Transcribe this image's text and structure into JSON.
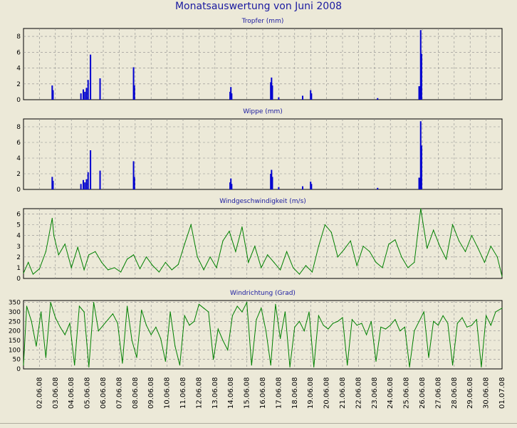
{
  "title": "Monatsauswertung von Juni 2008",
  "colors": {
    "rain": "#0000d0",
    "wind": "#008000",
    "plot_bg": "#ece9d8",
    "grid": "#8c8c8c",
    "panel_title": "#1a1aa0"
  },
  "chart_data": [
    {
      "type": "bar",
      "title": "Tropfer (mm)",
      "ylim": [
        0,
        9
      ],
      "yticks": [
        0,
        2,
        4,
        6,
        8
      ],
      "xlim": [
        "01.06.08",
        "01.07.08"
      ],
      "grid": true,
      "series": [
        {
          "values_x_day": [
            1.8,
            1.85,
            3.6,
            3.75,
            3.85,
            3.95,
            4.05,
            4.2,
            4.8,
            6.9,
            6.95,
            12.95,
            13.0,
            13.05,
            15.5,
            15.55,
            15.6,
            16.0,
            17.5,
            18.0,
            18.05,
            22.2,
            24.8,
            24.85,
            24.9,
            24.95
          ],
          "values": [
            1.8,
            1.2,
            0.8,
            1.3,
            1.0,
            1.5,
            2.5,
            5.7,
            2.7,
            4.1,
            1.8,
            1.0,
            1.6,
            0.8,
            2.2,
            2.8,
            1.8,
            0.3,
            0.5,
            1.2,
            0.8,
            0.2,
            1.7,
            1.7,
            8.8,
            5.8
          ]
        }
      ]
    },
    {
      "type": "bar",
      "title": "Wippe (mm)",
      "ylim": [
        0,
        9
      ],
      "yticks": [
        0,
        2,
        4,
        6,
        8
      ],
      "xlim": [
        "01.06.08",
        "01.07.08"
      ],
      "grid": true,
      "series": [
        {
          "values_x_day": [
            1.8,
            1.85,
            3.6,
            3.75,
            3.85,
            3.95,
            4.05,
            4.2,
            4.8,
            6.9,
            6.95,
            12.95,
            13.0,
            13.05,
            15.5,
            15.55,
            15.6,
            16.0,
            17.5,
            18.0,
            18.05,
            22.2,
            24.8,
            24.85,
            24.9,
            24.95
          ],
          "values": [
            1.6,
            1.1,
            0.7,
            1.2,
            0.9,
            1.3,
            2.2,
            5.0,
            2.4,
            3.6,
            1.6,
            0.9,
            1.4,
            0.7,
            2.0,
            2.5,
            1.6,
            0.3,
            0.4,
            1.0,
            0.7,
            0.2,
            1.5,
            1.5,
            8.7,
            5.6
          ]
        }
      ]
    },
    {
      "type": "line",
      "title": "Windgeschwindigkeit (m/s)",
      "ylim": [
        0,
        6.5
      ],
      "yticks": [
        0,
        1,
        2,
        3,
        4,
        5,
        6
      ],
      "xlim": [
        "01.06.08",
        "01.07.08"
      ],
      "grid": true,
      "series": [
        {
          "x_day": [
            0,
            0.3,
            0.6,
            1.0,
            1.4,
            1.8,
            1.9,
            2.2,
            2.6,
            3.0,
            3.4,
            3.8,
            4.1,
            4.5,
            4.9,
            5.3,
            5.7,
            6.1,
            6.5,
            6.9,
            7.3,
            7.7,
            8.1,
            8.5,
            8.9,
            9.3,
            9.7,
            10.1,
            10.5,
            10.9,
            11.3,
            11.7,
            12.1,
            12.5,
            12.9,
            13.3,
            13.7,
            14.1,
            14.5,
            14.9,
            15.3,
            15.7,
            16.1,
            16.5,
            16.9,
            17.3,
            17.7,
            18.1,
            18.5,
            18.9,
            19.3,
            19.7,
            20.1,
            20.5,
            20.9,
            21.3,
            21.7,
            22.1,
            22.5,
            22.9,
            23.3,
            23.7,
            24.1,
            24.5,
            24.9,
            25.3,
            25.7,
            26.1,
            26.5,
            26.9,
            27.3,
            27.7,
            28.1,
            28.5,
            28.9,
            29.3,
            29.7,
            30.0
          ],
          "values": [
            0.5,
            1.5,
            0.4,
            0.9,
            2.5,
            5.6,
            4.0,
            2.2,
            3.2,
            1.0,
            2.9,
            0.8,
            2.2,
            2.5,
            1.5,
            0.8,
            1.0,
            0.6,
            1.8,
            2.2,
            0.9,
            2.0,
            1.2,
            0.6,
            1.5,
            0.8,
            1.3,
            3.2,
            5.0,
            2.0,
            0.8,
            2.0,
            1.0,
            3.5,
            4.4,
            2.5,
            4.8,
            1.5,
            3.0,
            1.0,
            2.2,
            1.5,
            0.8,
            2.5,
            1.0,
            0.4,
            1.2,
            0.6,
            3.0,
            5.0,
            4.3,
            2.0,
            2.7,
            3.5,
            1.2,
            3.0,
            2.5,
            1.5,
            1.0,
            3.2,
            3.6,
            2.0,
            1.0,
            1.5,
            6.5,
            2.8,
            4.5,
            3.0,
            1.8,
            5.0,
            3.5,
            2.5,
            4.0,
            2.8,
            1.5,
            3.0,
            2.0,
            0.2
          ]
        }
      ]
    },
    {
      "type": "line",
      "title": "Windrichtung (Grad)",
      "ylim": [
        0,
        360
      ],
      "yticks": [
        0,
        50,
        100,
        150,
        200,
        250,
        300,
        350
      ],
      "xlim": [
        "01.06.08",
        "01.07.08"
      ],
      "grid": true,
      "xtick_labels": [
        "02.06.08",
        "03.06.08",
        "04.06.08",
        "05.06.08",
        "06.06.08",
        "07.06.08",
        "08.06.08",
        "09.06.08",
        "10.06.08",
        "11.06.08",
        "12.06.08",
        "13.06.08",
        "14.06.08",
        "15.06.08",
        "16.06.08",
        "17.06.08",
        "18.06.08",
        "19.06.08",
        "20.06.08",
        "21.06.08",
        "22.06.08",
        "23.06.08",
        "24.06.08",
        "25.06.08",
        "26.06.08",
        "27.06.08",
        "28.06.08",
        "29.06.08",
        "30.06.08",
        "01.07.08"
      ],
      "series": [
        {
          "x_day": [
            0,
            0.2,
            0.5,
            0.8,
            1.1,
            1.4,
            1.7,
            2.0,
            2.3,
            2.6,
            2.9,
            3.2,
            3.5,
            3.8,
            4.1,
            4.4,
            4.7,
            5.0,
            5.3,
            5.6,
            5.9,
            6.2,
            6.5,
            6.8,
            7.1,
            7.4,
            7.7,
            8.0,
            8.3,
            8.6,
            8.9,
            9.2,
            9.5,
            9.8,
            10.1,
            10.4,
            10.7,
            11.0,
            11.3,
            11.6,
            11.9,
            12.2,
            12.5,
            12.8,
            13.1,
            13.4,
            13.7,
            14.0,
            14.3,
            14.6,
            14.9,
            15.2,
            15.5,
            15.8,
            16.1,
            16.4,
            16.7,
            17.0,
            17.3,
            17.6,
            17.9,
            18.2,
            18.5,
            18.8,
            19.1,
            19.4,
            19.7,
            20.0,
            20.3,
            20.6,
            20.9,
            21.2,
            21.5,
            21.8,
            22.1,
            22.4,
            22.7,
            23.0,
            23.3,
            23.6,
            23.9,
            24.2,
            24.5,
            24.8,
            25.1,
            25.4,
            25.7,
            26.0,
            26.3,
            26.6,
            26.9,
            27.2,
            27.5,
            27.8,
            28.1,
            28.4,
            28.7,
            29.0,
            29.3,
            29.6,
            30.0
          ],
          "values": [
            20,
            330,
            250,
            120,
            300,
            60,
            350,
            270,
            220,
            180,
            240,
            20,
            330,
            300,
            10,
            350,
            200,
            230,
            260,
            290,
            240,
            30,
            330,
            150,
            60,
            310,
            230,
            180,
            220,
            160,
            40,
            300,
            120,
            20,
            280,
            230,
            250,
            340,
            320,
            300,
            50,
            210,
            150,
            100,
            280,
            330,
            300,
            350,
            20,
            260,
            320,
            200,
            20,
            340,
            160,
            300,
            10,
            220,
            250,
            200,
            300,
            10,
            280,
            230,
            210,
            240,
            250,
            270,
            20,
            260,
            230,
            240,
            180,
            250,
            40,
            220,
            210,
            230,
            260,
            200,
            220,
            10,
            200,
            250,
            300,
            60,
            250,
            230,
            280,
            240,
            20,
            240,
            270,
            220,
            230,
            260,
            10,
            280,
            230,
            300,
            320
          ]
        }
      ]
    }
  ]
}
